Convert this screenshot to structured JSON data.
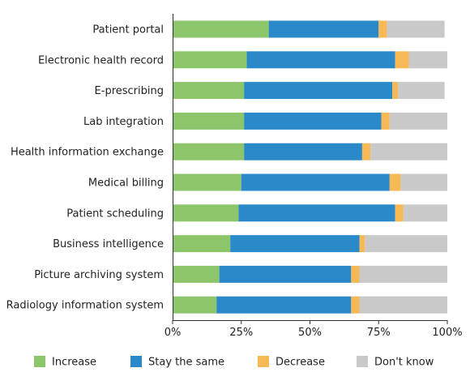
{
  "chart_data": {
    "type": "bar",
    "orientation": "horizontal",
    "stacked": true,
    "categories": [
      "Patient portal",
      "Electronic health record",
      "E-prescribing",
      "Lab integration",
      "Health information exchange",
      "Medical billing",
      "Patient scheduling",
      "Business intelligence",
      "Picture archiving system",
      "Radiology information system"
    ],
    "series": [
      {
        "name": "Increase",
        "color": "#8cc56a",
        "values": [
          35,
          27,
          26,
          26,
          26,
          25,
          24,
          21,
          17,
          16
        ]
      },
      {
        "name": "Stay the same",
        "color": "#2a89c9",
        "values": [
          40,
          54,
          54,
          50,
          43,
          54,
          57,
          47,
          48,
          49
        ]
      },
      {
        "name": "Decrease",
        "color": "#f7b955",
        "values": [
          3,
          5,
          2,
          3,
          3,
          4,
          3,
          2,
          3,
          3
        ]
      },
      {
        "name": "Don't know",
        "color": "#c9c9c9",
        "values": [
          21,
          14,
          17,
          21,
          28,
          17,
          16,
          30,
          32,
          32
        ]
      }
    ],
    "xlim": [
      0,
      100
    ],
    "x_ticks": [
      "0%",
      "25%",
      "50%",
      "75%",
      "100%"
    ],
    "x_tick_values": [
      0,
      25,
      50,
      75,
      100
    ],
    "grid": false,
    "legend_position": "bottom"
  }
}
